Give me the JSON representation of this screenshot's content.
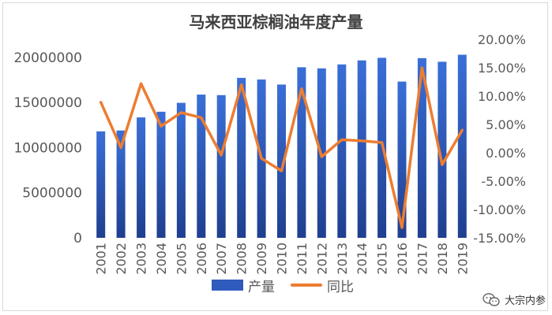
{
  "chart_data": {
    "type": "bar",
    "title": "马来西亚棕榈油年度产量",
    "categories": [
      "2001",
      "2002",
      "2003",
      "2004",
      "2005",
      "2006",
      "2007",
      "2008",
      "2009",
      "2010",
      "2011",
      "2012",
      "2013",
      "2014",
      "2015",
      "2016",
      "2017",
      "2018",
      "2019"
    ],
    "series": [
      {
        "name": "产量",
        "type": "bar",
        "axis": "left",
        "color": "#2e5bbd",
        "values": [
          11800000,
          11900000,
          13350000,
          13980000,
          14960000,
          15880000,
          15820000,
          17730000,
          17560000,
          16990000,
          18910000,
          18790000,
          19220000,
          19670000,
          19960000,
          17320000,
          19920000,
          19520000,
          20300000
        ]
      },
      {
        "name": "同比",
        "type": "line",
        "axis": "right",
        "color": "#ed7d31",
        "values": [
          0.089,
          0.009,
          0.122,
          0.047,
          0.071,
          0.062,
          -0.004,
          0.12,
          -0.01,
          -0.032,
          0.113,
          -0.007,
          0.023,
          0.021,
          0.018,
          -0.132,
          0.15,
          -0.021,
          0.04
        ]
      }
    ],
    "y_left": {
      "min": 0,
      "max": 22000000,
      "ticks": [
        0,
        5000000,
        10000000,
        15000000,
        20000000
      ],
      "tick_labels": [
        "0",
        "5000000",
        "10000000",
        "15000000",
        "20000000"
      ]
    },
    "y_right": {
      "min": -0.15,
      "max": 0.2,
      "ticks": [
        -0.15,
        -0.1,
        -0.05,
        0.0,
        0.05,
        0.1,
        0.15,
        0.2
      ],
      "tick_labels": [
        "-15.00%",
        "-10.00%",
        "-5.00%",
        "0.00%",
        "5.00%",
        "10.00%",
        "15.00%",
        "20.00%"
      ]
    },
    "grid": false,
    "legend_position": "bottom"
  },
  "legend": {
    "bar_label": "产量",
    "line_label": "同比"
  },
  "watermark": {
    "text": "大宗内参"
  }
}
